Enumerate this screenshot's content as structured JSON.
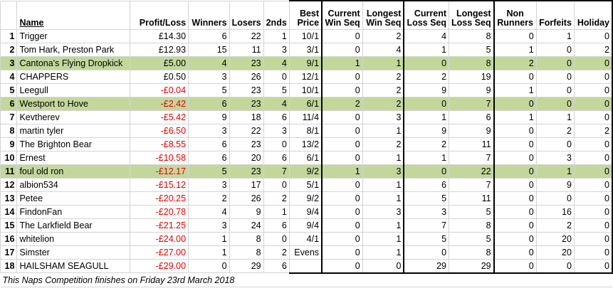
{
  "headers": {
    "name": "Name",
    "profit_loss": "Profit/Loss",
    "winners": "Winners",
    "losers": "Losers",
    "seconds": "2nds",
    "best_price_1": "Best",
    "best_price_2": "Price",
    "cur_win_1": "Current",
    "cur_win_2": "Win Seq",
    "long_win_1": "Longest",
    "long_win_2": "Win Seq",
    "cur_loss_1": "Current",
    "cur_loss_2": "Loss Seq",
    "long_loss_1": "Longest",
    "long_loss_2": "Loss Seq",
    "non_runners_1": "Non",
    "non_runners_2": "Runners",
    "forfeits": "Forfeits",
    "holiday": "Holiday"
  },
  "rows": [
    {
      "rank": "1",
      "name": "Trigger",
      "pl": "£14.30",
      "w": "6",
      "l": "22",
      "s": "1",
      "bp": "10/1",
      "cws": "0",
      "lws": "2",
      "cls": "4",
      "lls": "8",
      "nr": "0",
      "f": "1",
      "h": "0",
      "hl": false,
      "neg": false
    },
    {
      "rank": "2",
      "name": "Tom Hark, Preston Park",
      "pl": "£12.93",
      "w": "15",
      "l": "11",
      "s": "3",
      "bp": "3/1",
      "cws": "0",
      "lws": "4",
      "cls": "1",
      "lls": "5",
      "nr": "1",
      "f": "0",
      "h": "2",
      "hl": false,
      "neg": false
    },
    {
      "rank": "3",
      "name": "Cantona's Flying Dropkick",
      "pl": "£5.00",
      "w": "4",
      "l": "23",
      "s": "4",
      "bp": "9/1",
      "cws": "1",
      "lws": "1",
      "cls": "0",
      "lls": "8",
      "nr": "2",
      "f": "0",
      "h": "0",
      "hl": true,
      "neg": false
    },
    {
      "rank": "4",
      "name": "CHAPPERS",
      "pl": "£0.50",
      "w": "3",
      "l": "26",
      "s": "0",
      "bp": "12/1",
      "cws": "0",
      "lws": "2",
      "cls": "2",
      "lls": "19",
      "nr": "0",
      "f": "0",
      "h": "0",
      "hl": false,
      "neg": false
    },
    {
      "rank": "5",
      "name": "Leegull",
      "pl": "-£0.04",
      "w": "5",
      "l": "23",
      "s": "5",
      "bp": "10/1",
      "cws": "0",
      "lws": "2",
      "cls": "9",
      "lls": "9",
      "nr": "1",
      "f": "0",
      "h": "0",
      "hl": false,
      "neg": true
    },
    {
      "rank": "6",
      "name": "Westport to Hove",
      "pl": "-£2.42",
      "w": "6",
      "l": "23",
      "s": "4",
      "bp": "6/1",
      "cws": "2",
      "lws": "2",
      "cls": "0",
      "lls": "7",
      "nr": "0",
      "f": "0",
      "h": "0",
      "hl": true,
      "neg": true
    },
    {
      "rank": "7",
      "name": "Kevtherev",
      "pl": "-£5.42",
      "w": "9",
      "l": "18",
      "s": "6",
      "bp": "11/4",
      "cws": "0",
      "lws": "3",
      "cls": "1",
      "lls": "6",
      "nr": "1",
      "f": "1",
      "h": "0",
      "hl": false,
      "neg": true
    },
    {
      "rank": "8",
      "name": "martin tyler",
      "pl": "-£6.50",
      "w": "3",
      "l": "22",
      "s": "3",
      "bp": "8/1",
      "cws": "0",
      "lws": "1",
      "cls": "9",
      "lls": "9",
      "nr": "0",
      "f": "2",
      "h": "2",
      "hl": false,
      "neg": true
    },
    {
      "rank": "9",
      "name": "The Brighton Bear",
      "pl": "-£8.55",
      "w": "6",
      "l": "23",
      "s": "0",
      "bp": "13/2",
      "cws": "0",
      "lws": "2",
      "cls": "2",
      "lls": "11",
      "nr": "0",
      "f": "0",
      "h": "0",
      "hl": false,
      "neg": true
    },
    {
      "rank": "10",
      "name": "Ernest",
      "pl": "-£10.58",
      "w": "6",
      "l": "20",
      "s": "6",
      "bp": "6/1",
      "cws": "0",
      "lws": "1",
      "cls": "1",
      "lls": "7",
      "nr": "0",
      "f": "3",
      "h": "0",
      "hl": false,
      "neg": true
    },
    {
      "rank": "11",
      "name": "foul old ron",
      "pl": "-£12.17",
      "w": "5",
      "l": "23",
      "s": "7",
      "bp": "9/2",
      "cws": "1",
      "lws": "3",
      "cls": "0",
      "lls": "22",
      "nr": "0",
      "f": "1",
      "h": "0",
      "hl": true,
      "neg": true
    },
    {
      "rank": "12",
      "name": "albion534",
      "pl": "-£15.12",
      "w": "3",
      "l": "17",
      "s": "0",
      "bp": "5/1",
      "cws": "0",
      "lws": "1",
      "cls": "6",
      "lls": "7",
      "nr": "0",
      "f": "9",
      "h": "0",
      "hl": false,
      "neg": true
    },
    {
      "rank": "13",
      "name": "Petee",
      "pl": "-£20.25",
      "w": "2",
      "l": "26",
      "s": "2",
      "bp": "9/2",
      "cws": "0",
      "lws": "1",
      "cls": "5",
      "lls": "11",
      "nr": "0",
      "f": "0",
      "h": "0",
      "hl": false,
      "neg": true
    },
    {
      "rank": "14",
      "name": "FindonFan",
      "pl": "-£20.78",
      "w": "4",
      "l": "9",
      "s": "1",
      "bp": "9/4",
      "cws": "0",
      "lws": "3",
      "cls": "3",
      "lls": "5",
      "nr": "0",
      "f": "16",
      "h": "0",
      "hl": false,
      "neg": true
    },
    {
      "rank": "15",
      "name": "The Larkfield Bear",
      "pl": "-£21.25",
      "w": "3",
      "l": "24",
      "s": "6",
      "bp": "9/4",
      "cws": "0",
      "lws": "1",
      "cls": "7",
      "lls": "8",
      "nr": "0",
      "f": "2",
      "h": "0",
      "hl": false,
      "neg": true
    },
    {
      "rank": "16",
      "name": "whitelion",
      "pl": "-£24.00",
      "w": "1",
      "l": "8",
      "s": "0",
      "bp": "4/1",
      "cws": "0",
      "lws": "1",
      "cls": "5",
      "lls": "5",
      "nr": "0",
      "f": "20",
      "h": "0",
      "hl": false,
      "neg": true
    },
    {
      "rank": "17",
      "name": "Simster",
      "pl": "-£27.00",
      "w": "1",
      "l": "8",
      "s": "2",
      "bp": "Evens",
      "cws": "0",
      "lws": "1",
      "cls": "0",
      "lls": "8",
      "nr": "0",
      "f": "20",
      "h": "0",
      "hl": false,
      "neg": true
    },
    {
      "rank": "18",
      "name": "HAILSHAM SEAGULL",
      "pl": "-£29.00",
      "w": "0",
      "l": "29",
      "s": "6",
      "bp": "",
      "cws": "0",
      "lws": "0",
      "cls": "29",
      "lls": "29",
      "nr": "0",
      "f": "0",
      "h": "0",
      "hl": false,
      "neg": true
    }
  ],
  "footnote": "This Naps Competition finishes on Friday 23rd March 2018",
  "colors": {
    "highlight": "#c4d79b",
    "negative": "#e60000"
  }
}
